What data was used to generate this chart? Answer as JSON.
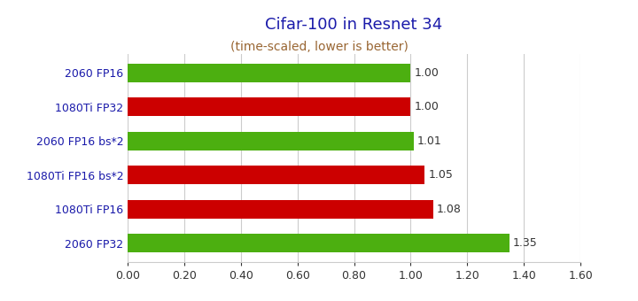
{
  "title": "Cifar-100 in Resnet 34",
  "subtitle": "(time-scaled, lower is better)",
  "categories": [
    "2060 FP32",
    "1080Ti FP16",
    "1080Ti FP16 bs*2",
    "2060 FP16 bs*2",
    "1080Ti FP32",
    "2060 FP16"
  ],
  "values": [
    1.35,
    1.08,
    1.05,
    1.01,
    1.0,
    1.0
  ],
  "colors": [
    "#4caf10",
    "#cc0000",
    "#cc0000",
    "#4caf10",
    "#cc0000",
    "#4caf10"
  ],
  "xlim": [
    0,
    1.6
  ],
  "xticks": [
    0.0,
    0.2,
    0.4,
    0.6,
    0.8,
    1.0,
    1.2,
    1.4,
    1.6
  ],
  "title_color": "#1a1aaa",
  "subtitle_color": "#996633",
  "label_color": "#1a1aaa",
  "value_color": "#333333",
  "tick_color": "#333333",
  "title_fontsize": 13,
  "subtitle_fontsize": 10,
  "label_fontsize": 9,
  "value_fontsize": 9,
  "bar_height": 0.55,
  "grid_color": "#cccccc",
  "bg_color": "#ffffff"
}
